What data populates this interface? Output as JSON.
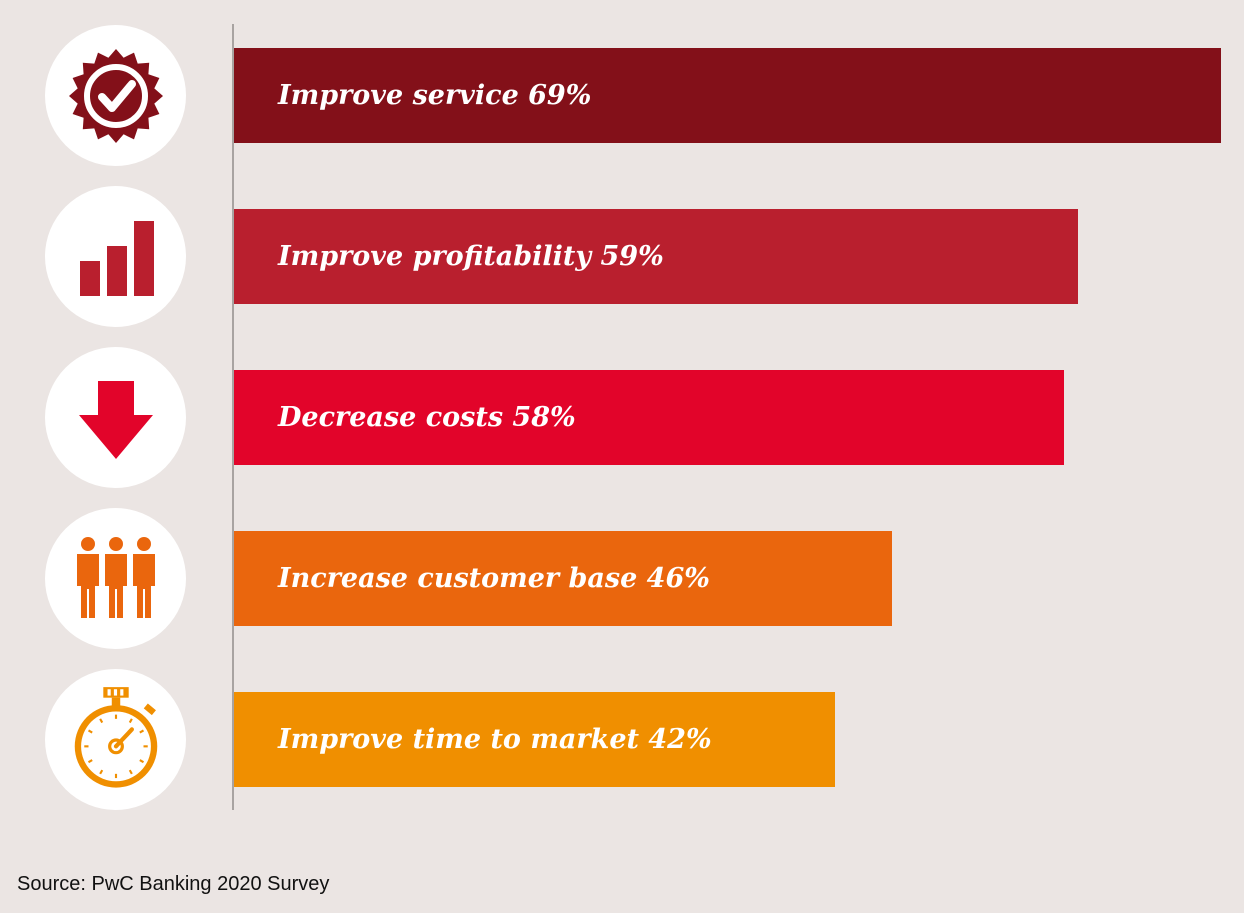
{
  "chart_data": {
    "type": "bar",
    "orientation": "horizontal",
    "categories": [
      "Improve service",
      "Improve profitability",
      "Decrease costs",
      "Increase customer base",
      "Improve time to market"
    ],
    "values": [
      69,
      59,
      58,
      46,
      42
    ],
    "labels": [
      "Improve service 69%",
      "Improve profitability 59%",
      "Decrease costs 58%",
      "Increase customer base 46%",
      "Improve time to market 42%"
    ],
    "colors": [
      "#831019",
      "#b91f2e",
      "#e2042a",
      "#ea660d",
      "#f08f00"
    ],
    "icons": [
      "checkmark-seal-icon",
      "bar-chart-icon",
      "down-arrow-icon",
      "people-icon",
      "stopwatch-icon"
    ],
    "unit": "%",
    "xlim": [
      0,
      69
    ]
  },
  "source": "Source: PwC Banking 2020 Survey"
}
